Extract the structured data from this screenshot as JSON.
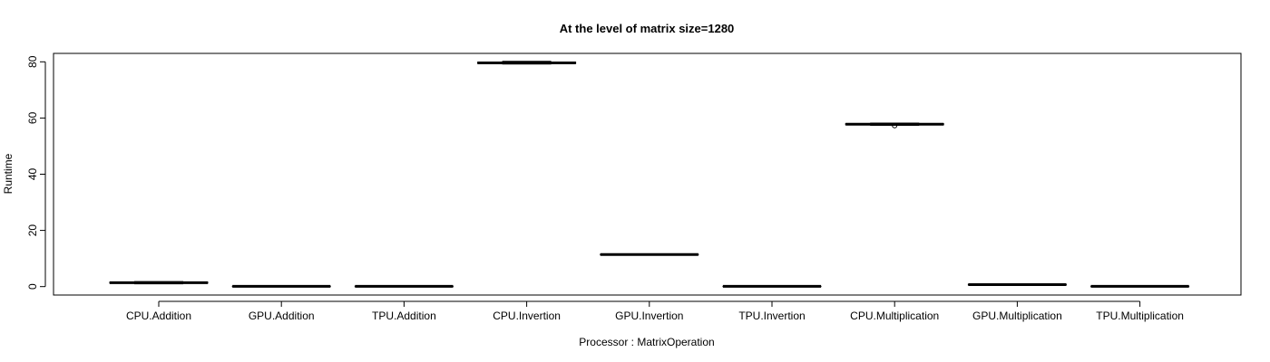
{
  "chart_data": {
    "type": "box",
    "title": "At the level of matrix size=1280",
    "xlabel": "Processor : MatrixOperation",
    "ylabel": "Runtime",
    "ylim": [
      -3,
      83
    ],
    "yticks": [
      0,
      20,
      40,
      60,
      80
    ],
    "grid": false,
    "categories": [
      "CPU.Addition",
      "GPU.Addition",
      "TPU.Addition",
      "CPU.Invertion",
      "GPU.Invertion",
      "TPU.Invertion",
      "CPU.Multiplication",
      "GPU.Multiplication",
      "TPU.Multiplication"
    ],
    "boxes": [
      {
        "q1": 1.2,
        "median": 1.4,
        "q3": 1.6,
        "whisker_low": 1.0,
        "whisker_high": 1.8,
        "outliers": []
      },
      {
        "q1": 0.05,
        "median": 0.1,
        "q3": 0.15,
        "whisker_low": 0.0,
        "whisker_high": 0.2,
        "outliers": []
      },
      {
        "q1": 0.05,
        "median": 0.1,
        "q3": 0.15,
        "whisker_low": 0.0,
        "whisker_high": 0.2,
        "outliers": []
      },
      {
        "q1": 79.4,
        "median": 79.6,
        "q3": 79.9,
        "whisker_low": 79.2,
        "whisker_high": 80.2,
        "outliers": []
      },
      {
        "q1": 11.3,
        "median": 11.4,
        "q3": 11.5,
        "whisker_low": 11.2,
        "whisker_high": 11.6,
        "outliers": []
      },
      {
        "q1": 0.05,
        "median": 0.1,
        "q3": 0.15,
        "whisker_low": 0.0,
        "whisker_high": 0.2,
        "outliers": []
      },
      {
        "q1": 57.6,
        "median": 57.8,
        "q3": 58.0,
        "whisker_low": 57.4,
        "whisker_high": 58.2,
        "outliers": [
          57.3
        ]
      },
      {
        "q1": 0.6,
        "median": 0.7,
        "q3": 0.8,
        "whisker_low": 0.5,
        "whisker_high": 0.9,
        "outliers": []
      },
      {
        "q1": 0.05,
        "median": 0.1,
        "q3": 0.15,
        "whisker_low": 0.0,
        "whisker_high": 0.2,
        "outliers": []
      }
    ]
  }
}
